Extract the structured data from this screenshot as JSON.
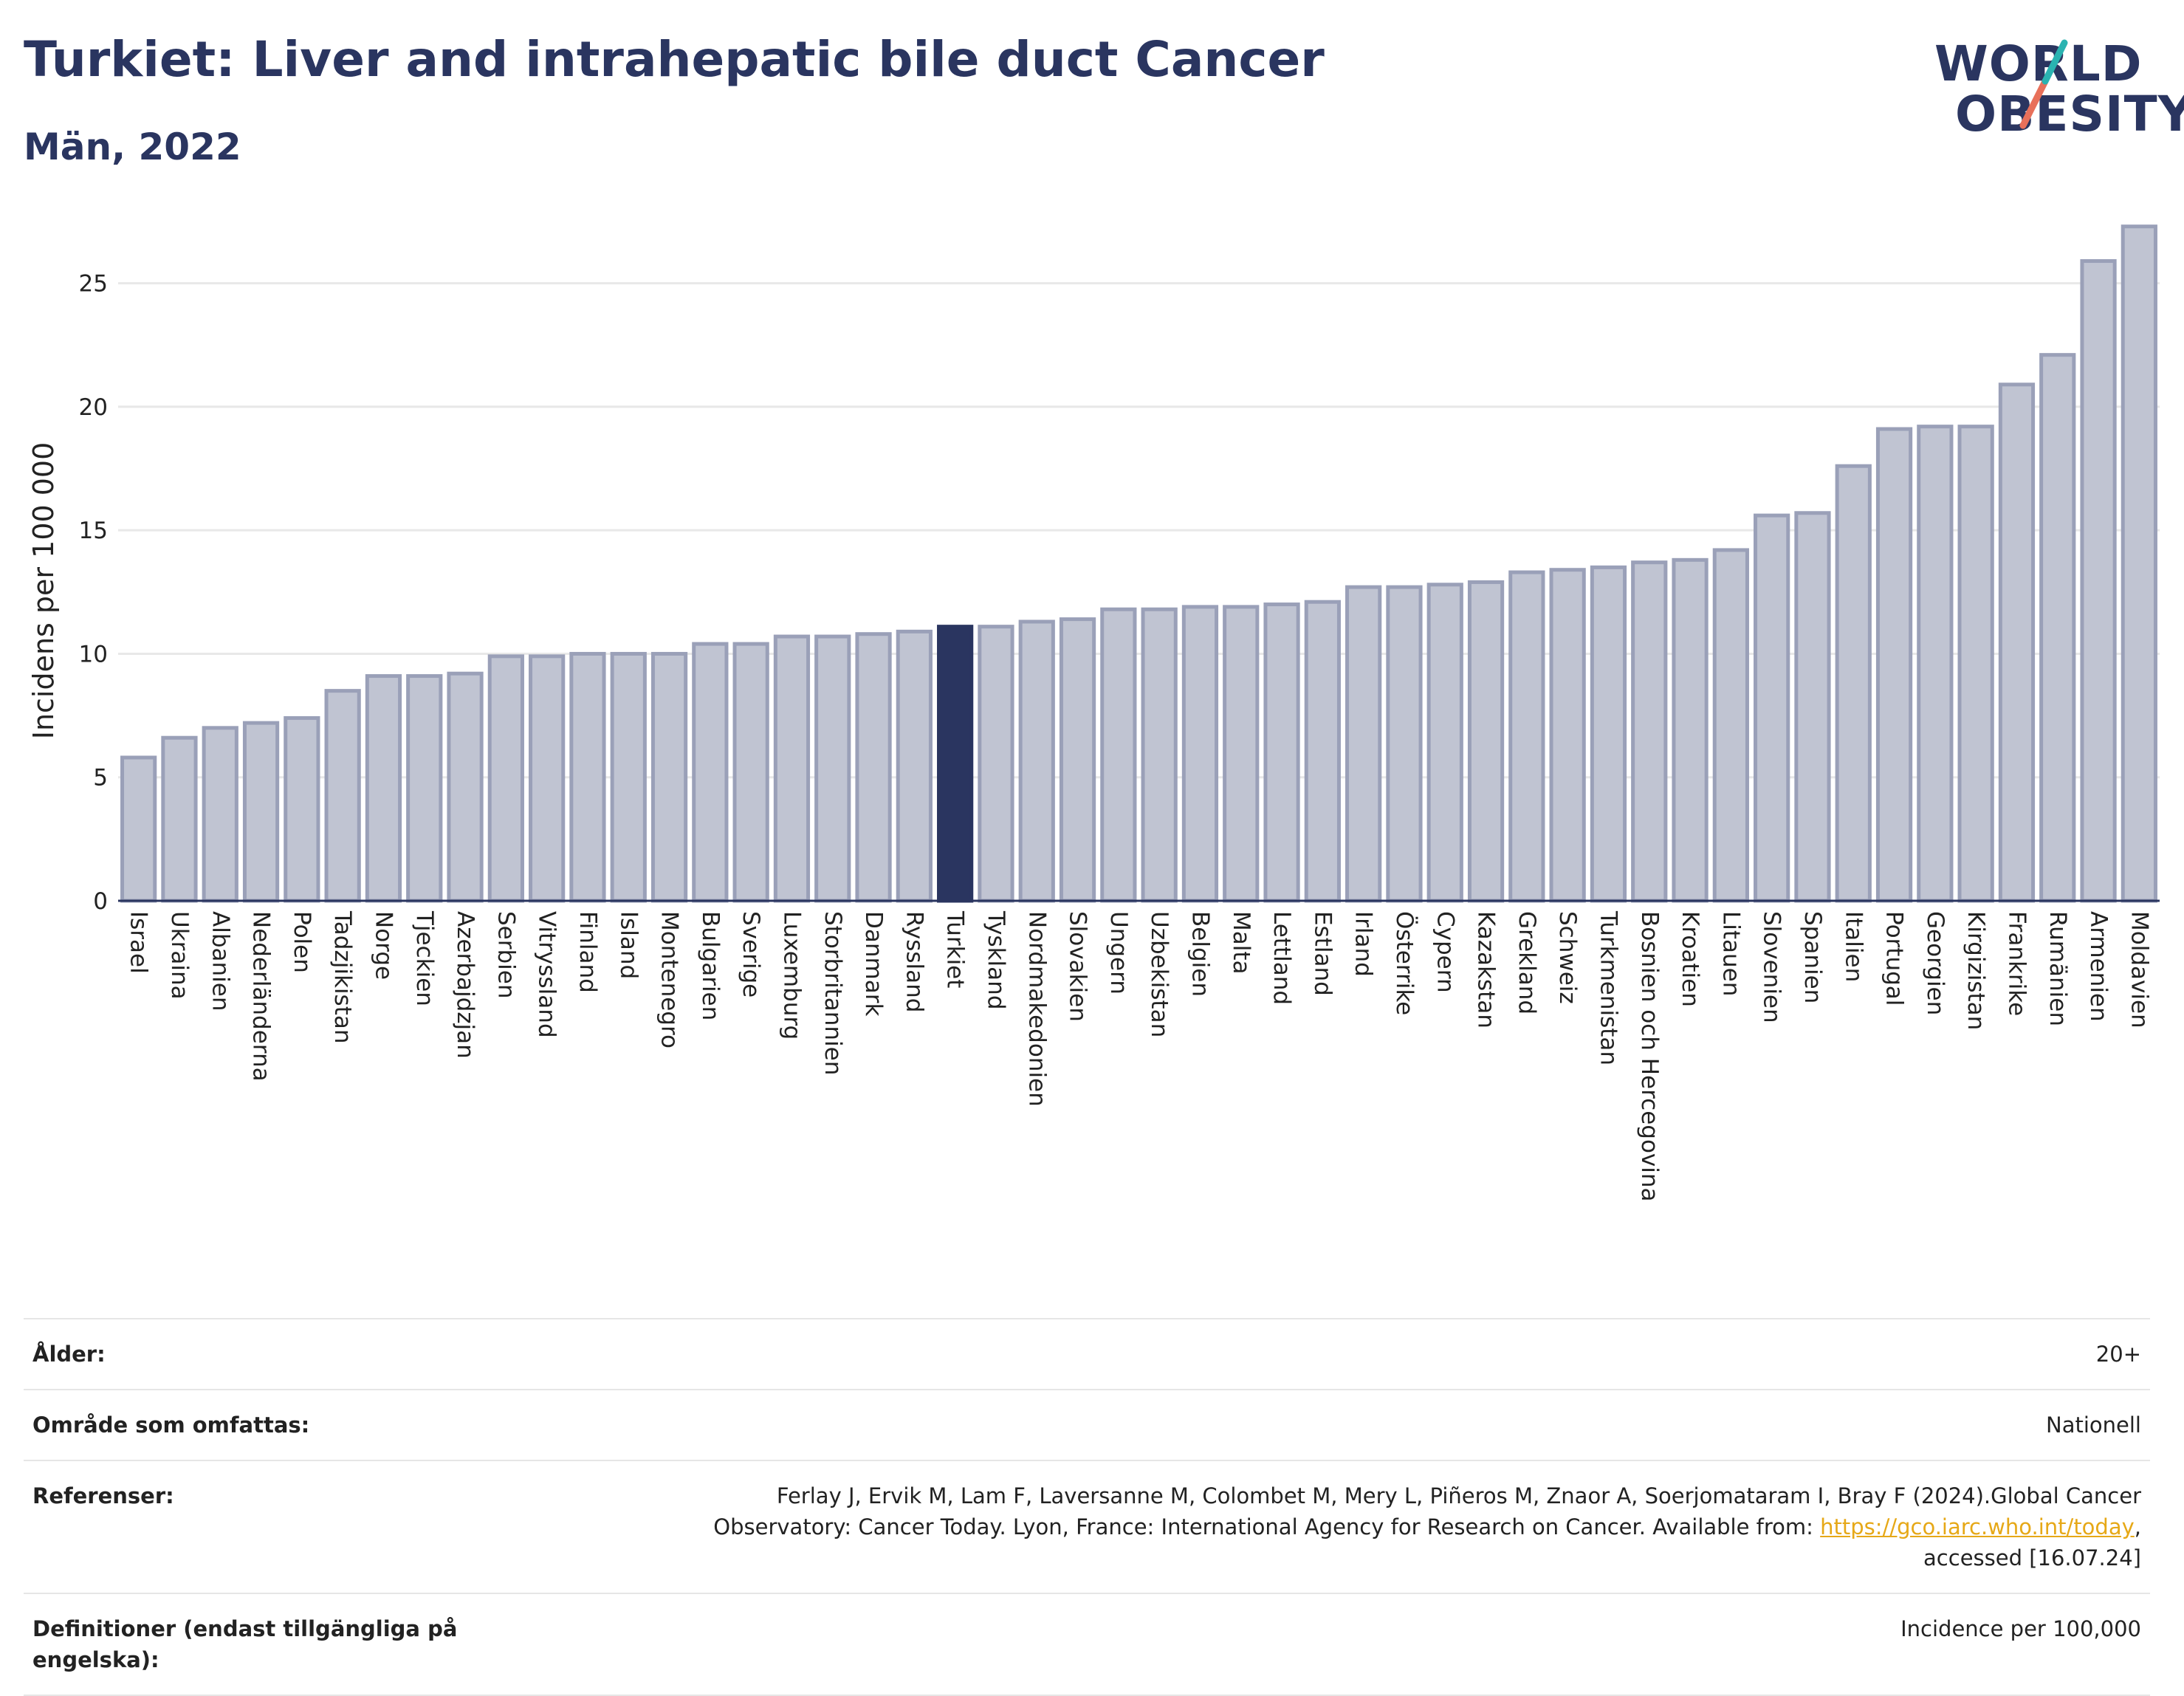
{
  "header": {
    "title": "Turkiet: Liver and intrahepatic bile duct Cancer",
    "subtitle": "Män, 2022"
  },
  "logo": {
    "line1": "WORLD",
    "line2": "OBESITY"
  },
  "colors": {
    "highlight": "#2a3560",
    "bar": "#c0c4d2",
    "bar_edge": "#9aa0b8",
    "grid": "#e8e8e8",
    "logo_slash_teal": "#2ab3b1",
    "logo_slash_red": "#e8705a"
  },
  "chart_data": {
    "type": "bar",
    "highlight": "Turkiet",
    "ylabel": "Incidens per 100 000",
    "xlabel": "",
    "ylim": [
      0,
      27.5
    ],
    "yticks": [
      0,
      5,
      10,
      15,
      20,
      25
    ],
    "grid": true,
    "categories": [
      "Israel",
      "Ukraina",
      "Albanien",
      "Nederländerna",
      "Polen",
      "Tadzjikistan",
      "Norge",
      "Tjeckien",
      "Azerbajdzjan",
      "Serbien",
      "Vitryssland",
      "Finland",
      "Island",
      "Montenegro",
      "Bulgarien",
      "Sverige",
      "Luxemburg",
      "Storbritannien",
      "Danmark",
      "Ryssland",
      "Turkiet",
      "Tyskland",
      "Nordmakedonien",
      "Slovakien",
      "Ungern",
      "Uzbekistan",
      "Belgien",
      "Malta",
      "Lettland",
      "Estland",
      "Irland",
      "Österrike",
      "Cypern",
      "Kazakstan",
      "Grekland",
      "Schweiz",
      "Turkmenistan",
      "Bosnien och Hercegovina",
      "Kroatien",
      "Litauen",
      "Slovenien",
      "Spanien",
      "Italien",
      "Portugal",
      "Georgien",
      "Kirgizistan",
      "Frankrike",
      "Rumänien",
      "Armenien",
      "Moldavien"
    ],
    "values": [
      5.8,
      6.6,
      7.0,
      7.2,
      7.4,
      8.5,
      9.1,
      9.1,
      9.2,
      9.9,
      9.9,
      10.0,
      10.0,
      10.0,
      10.4,
      10.4,
      10.7,
      10.7,
      10.8,
      10.9,
      11.1,
      11.1,
      11.3,
      11.4,
      11.8,
      11.8,
      11.9,
      11.9,
      12.0,
      12.1,
      12.7,
      12.7,
      12.8,
      12.9,
      13.3,
      13.4,
      13.5,
      13.7,
      13.8,
      14.2,
      15.6,
      15.7,
      17.6,
      19.1,
      19.2,
      19.2,
      20.9,
      22.1,
      25.9,
      27.3
    ]
  },
  "meta": {
    "age_label": "Ålder:",
    "age_value": "20+",
    "area_label": "Område som omfattas:",
    "area_value": "Nationell",
    "ref_label": "Referenser:",
    "ref_text_1": "Ferlay J, Ervik M, Lam F, Laversanne M, Colombet M, Mery L, Piñeros M, Znaor A, Soerjomataram I, Bray F (2024).Global Cancer",
    "ref_text_2": "Observatory: Cancer Today. Lyon, France: International Agency for Research on Cancer. Available from: ",
    "ref_link": "https://gco.iarc.who.int/today",
    "ref_text_3": ",",
    "ref_text_4": "accessed [16.07.24]",
    "def_label_1": "Definitioner (endast tillgängliga på",
    "def_label_2": "engelska):",
    "def_value": "Incidence per 100,000"
  }
}
